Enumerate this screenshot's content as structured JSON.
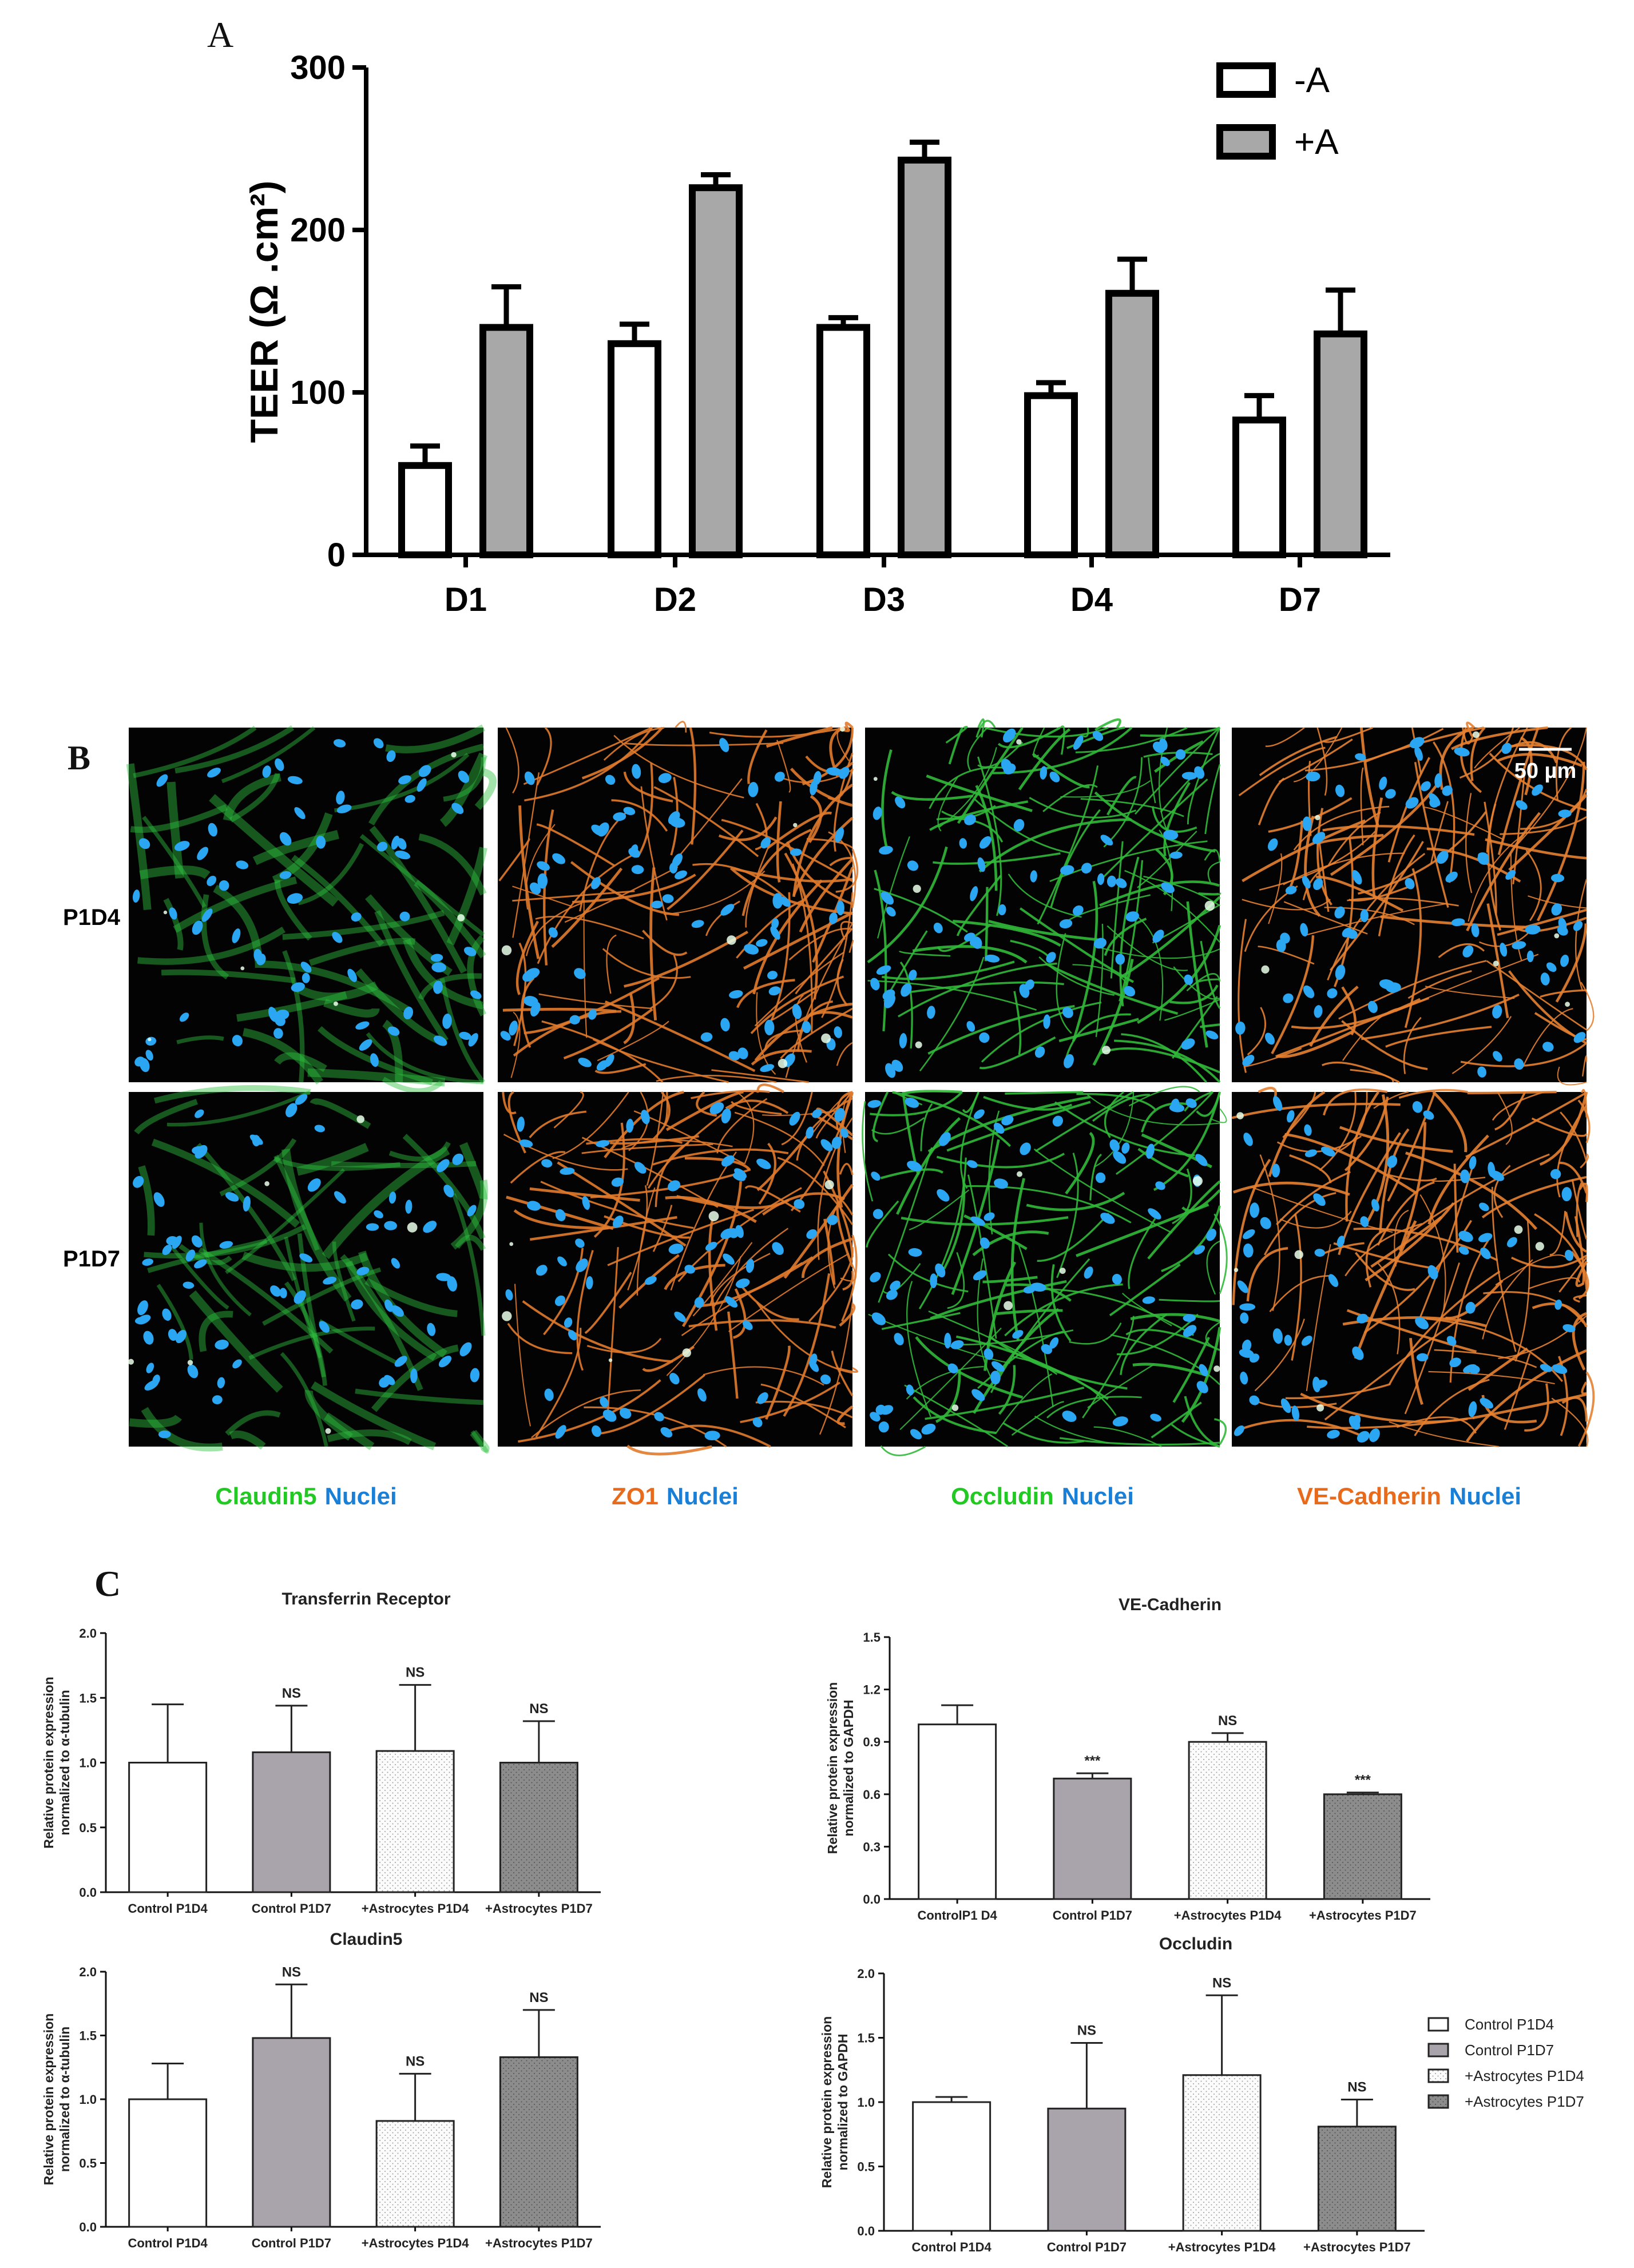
{
  "panel_labels": {
    "a": "A",
    "b": "B",
    "c": "C"
  },
  "panel_b": {
    "rows": [
      "P1D4",
      "P1D7"
    ],
    "scale_bar": "50 µm",
    "columns": [
      {
        "marker": "Claudin5",
        "marker_color": "#22c922",
        "nuclei": "Nuclei",
        "nuclei_color": "#1a7fd6",
        "membrane_color": "#2fc040",
        "style": "diffuse"
      },
      {
        "marker": "ZO1",
        "marker_color": "#e86b1c",
        "nuclei": "Nuclei",
        "nuclei_color": "#1a7fd6",
        "membrane_color": "#e07a2c",
        "style": "network"
      },
      {
        "marker": "Occludin",
        "marker_color": "#22c922",
        "nuclei": "Nuclei",
        "nuclei_color": "#1a7fd6",
        "membrane_color": "#31b93a",
        "style": "network"
      },
      {
        "marker": "VE-Cadherin",
        "marker_color": "#e86b1c",
        "nuclei": "Nuclei",
        "nuclei_color": "#1a7fd6",
        "membrane_color": "#e58131",
        "style": "network"
      }
    ],
    "nucleus_fill": "#2aa6f2",
    "background": "#030303"
  },
  "chart_data": [
    {
      "id": "A",
      "type": "bar",
      "title": "",
      "ylabel": "TEER (Ω .cm²)",
      "xlabel": "",
      "categories": [
        "D1",
        "D2",
        "D3",
        "D4",
        "D7"
      ],
      "ylim": [
        0,
        300
      ],
      "yticks": [
        "0",
        "100",
        "200",
        "300"
      ],
      "series": [
        {
          "name": "-A",
          "color": "#ffffff",
          "values": [
            55,
            130,
            140,
            98,
            83
          ],
          "errors": [
            12,
            12,
            6,
            8,
            15
          ]
        },
        {
          "name": "+A",
          "color": "#a8a8a8",
          "values": [
            140,
            226,
            243,
            161,
            136
          ],
          "errors": [
            25,
            8,
            11,
            21,
            27
          ]
        }
      ],
      "legend_position": "top-right"
    },
    {
      "id": "C1",
      "type": "bar",
      "title": "Transferrin Receptor",
      "ylabel": "Relative protein expression",
      "ylabel2": "normalized to α-tubulin",
      "categories": [
        "Control P1D4",
        "Control P1D7",
        "+Astrocytes P1D4",
        "+Astrocytes P1D7"
      ],
      "values": [
        1.0,
        1.08,
        1.09,
        1.0
      ],
      "errors": [
        0.45,
        0.36,
        0.51,
        0.32
      ],
      "annotations": [
        "",
        "NS",
        "NS",
        "NS"
      ],
      "ylim": [
        0,
        2.0
      ],
      "yticks": [
        "0.0",
        "0.5",
        "1.0",
        "1.5",
        "2.0"
      ]
    },
    {
      "id": "C2",
      "type": "bar",
      "title": "VE-Cadherin",
      "ylabel": "Relative protein expression",
      "ylabel2": "normalized to GAPDH",
      "categories": [
        "ControlP1 D4",
        "Control P1D7",
        "+Astrocytes P1D4",
        "+Astrocytes P1D7"
      ],
      "values": [
        1.0,
        0.69,
        0.9,
        0.6
      ],
      "errors": [
        0.11,
        0.03,
        0.05,
        0.01
      ],
      "annotations": [
        "",
        "***",
        "NS",
        "***"
      ],
      "ylim": [
        0,
        1.5
      ],
      "yticks": [
        "0.0",
        "0.3",
        "0.6",
        "0.9",
        "1.2",
        "1.5"
      ]
    },
    {
      "id": "C3",
      "type": "bar",
      "title": "Claudin5",
      "ylabel": "Relative protein expression",
      "ylabel2": "normalized to α-tubulin",
      "categories": [
        "Control P1D4",
        "Control P1D7",
        "+Astrocytes P1D4",
        "+Astrocytes P1D7"
      ],
      "values": [
        1.0,
        1.48,
        0.83,
        1.33
      ],
      "errors": [
        0.28,
        0.42,
        0.37,
        0.37
      ],
      "annotations": [
        "",
        "NS",
        "NS",
        "NS"
      ],
      "ylim": [
        0,
        2.0
      ],
      "yticks": [
        "0.0",
        "0.5",
        "1.0",
        "1.5",
        "2.0"
      ]
    },
    {
      "id": "C4",
      "type": "bar",
      "title": "Occludin",
      "ylabel": "Relative protein expression",
      "ylabel2": "normalized to GAPDH",
      "categories": [
        "Control P1D4",
        "Control P1D7",
        "+Astrocytes P1D4",
        "+Astrocytes P1D7"
      ],
      "values": [
        1.0,
        0.95,
        1.21,
        0.81
      ],
      "errors": [
        0.04,
        0.51,
        0.62,
        0.21
      ],
      "annotations": [
        "",
        "NS",
        "NS",
        "NS"
      ],
      "ylim": [
        0,
        2.0
      ],
      "yticks": [
        "0.0",
        "0.5",
        "1.0",
        "1.5",
        "2.0"
      ]
    }
  ],
  "legend_c": {
    "items": [
      "Control P1D4",
      "Control P1D7",
      "+Astrocytes P1D4",
      "+Astrocytes P1D7"
    ],
    "fills": [
      "#ffffff",
      "#a9a3ab",
      "#f4f4f4",
      "#8e8e8e"
    ]
  }
}
